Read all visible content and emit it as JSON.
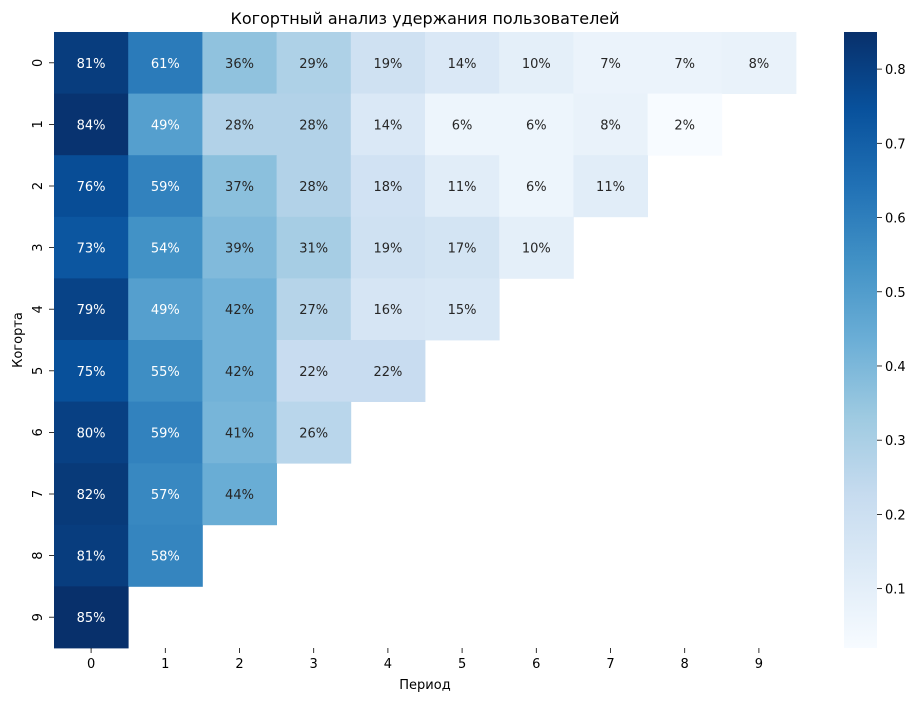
{
  "chart_data": {
    "type": "heatmap",
    "title": "Когортный анализ удержания пользователей",
    "xlabel": "Период",
    "ylabel": "Когорта",
    "x_ticks": [
      "0",
      "1",
      "2",
      "3",
      "4",
      "5",
      "6",
      "7",
      "8",
      "9"
    ],
    "y_ticks": [
      "0",
      "1",
      "2",
      "3",
      "4",
      "5",
      "6",
      "7",
      "8",
      "9"
    ],
    "values": [
      [
        0.81,
        0.61,
        0.36,
        0.29,
        0.19,
        0.14,
        0.1,
        0.07,
        0.07,
        0.08
      ],
      [
        0.84,
        0.49,
        0.28,
        0.28,
        0.14,
        0.06,
        0.06,
        0.08,
        0.02,
        null
      ],
      [
        0.76,
        0.59,
        0.37,
        0.28,
        0.18,
        0.11,
        0.06,
        0.11,
        null,
        null
      ],
      [
        0.73,
        0.54,
        0.39,
        0.31,
        0.19,
        0.17,
        0.1,
        null,
        null,
        null
      ],
      [
        0.79,
        0.49,
        0.42,
        0.27,
        0.16,
        0.15,
        null,
        null,
        null,
        null
      ],
      [
        0.75,
        0.55,
        0.42,
        0.22,
        0.22,
        null,
        null,
        null,
        null,
        null
      ],
      [
        0.8,
        0.59,
        0.41,
        0.26,
        null,
        null,
        null,
        null,
        null,
        null
      ],
      [
        0.82,
        0.57,
        0.44,
        null,
        null,
        null,
        null,
        null,
        null,
        null
      ],
      [
        0.81,
        0.58,
        null,
        null,
        null,
        null,
        null,
        null,
        null,
        null
      ],
      [
        0.85,
        null,
        null,
        null,
        null,
        null,
        null,
        null,
        null,
        null
      ]
    ],
    "value_labels": [
      [
        "81%",
        "61%",
        "36%",
        "29%",
        "19%",
        "14%",
        "10%",
        "7%",
        "7%",
        "8%"
      ],
      [
        "84%",
        "49%",
        "28%",
        "28%",
        "14%",
        "6%",
        "6%",
        "8%",
        "2%",
        null
      ],
      [
        "76%",
        "59%",
        "37%",
        "28%",
        "18%",
        "11%",
        "6%",
        "11%",
        null,
        null
      ],
      [
        "73%",
        "54%",
        "39%",
        "31%",
        "19%",
        "17%",
        "10%",
        null,
        null,
        null
      ],
      [
        "79%",
        "49%",
        "42%",
        "27%",
        "16%",
        "15%",
        null,
        null,
        null,
        null
      ],
      [
        "75%",
        "55%",
        "42%",
        "22%",
        "22%",
        null,
        null,
        null,
        null,
        null
      ],
      [
        "80%",
        "59%",
        "41%",
        "26%",
        null,
        null,
        null,
        null,
        null,
        null
      ],
      [
        "82%",
        "57%",
        "44%",
        null,
        null,
        null,
        null,
        null,
        null,
        null
      ],
      [
        "81%",
        "58%",
        null,
        null,
        null,
        null,
        null,
        null,
        null,
        null
      ],
      [
        "85%",
        null,
        null,
        null,
        null,
        null,
        null,
        null,
        null,
        null
      ]
    ],
    "colormap": "Blues",
    "color_range": [
      0.02,
      0.85
    ],
    "colorbar_ticks": [
      "0.1",
      "0.2",
      "0.3",
      "0.4",
      "0.5",
      "0.6",
      "0.7",
      "0.8"
    ],
    "colorbar_tick_values": [
      0.1,
      0.2,
      0.3,
      0.4,
      0.5,
      0.6,
      0.7,
      0.8
    ],
    "grid": false,
    "colorbar_position": "right"
  }
}
